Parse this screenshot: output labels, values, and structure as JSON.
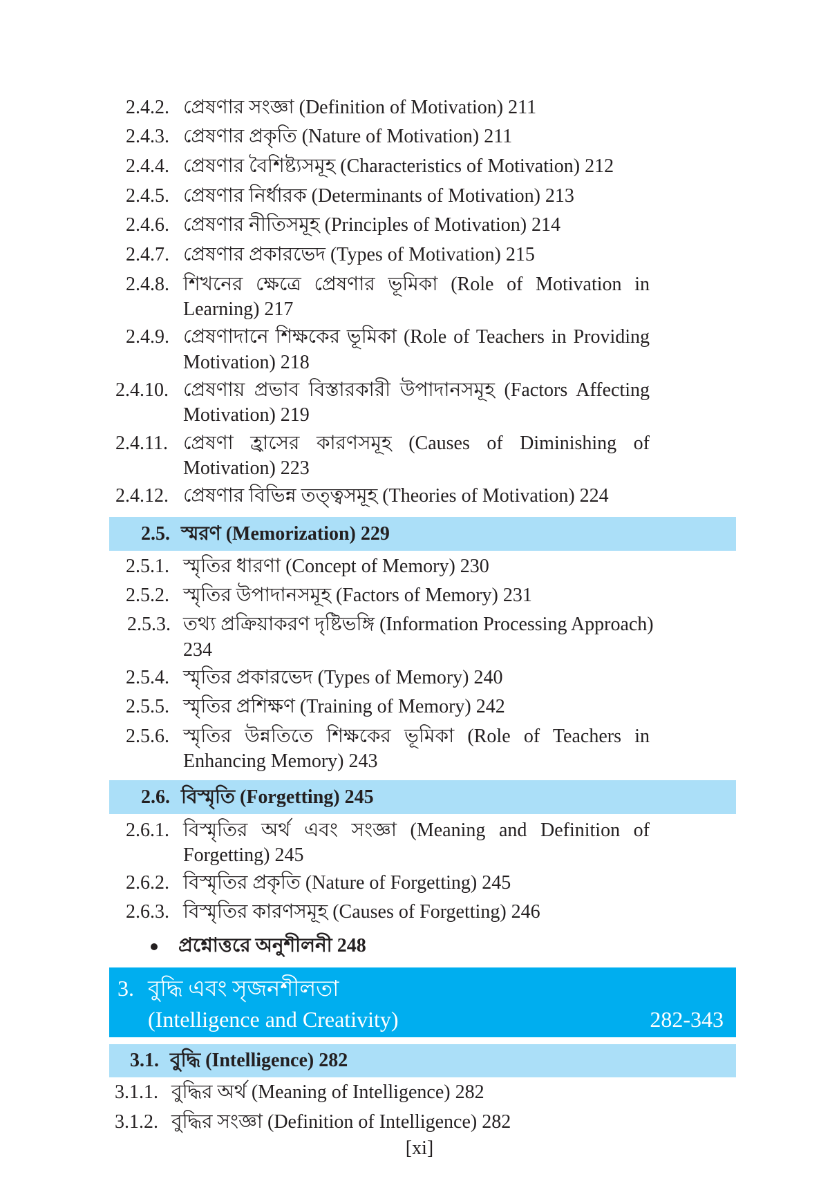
{
  "entries_a": [
    {
      "num": "2.4.2.",
      "lines": [
        "প্রেষণার সংজ্ঞা (Definition of Motivation) 211"
      ]
    },
    {
      "num": "2.4.3.",
      "lines": [
        "প্রেষণার প্রকৃতি (Nature of Motivation) 211"
      ]
    },
    {
      "num": "2.4.4.",
      "lines": [
        "প্রেষণার বৈশিষ্ট্যসমূহ (Characteristics of Motivation) 212"
      ]
    },
    {
      "num": "2.4.5.",
      "lines": [
        "প্রেষণার নির্ধারক (Determinants of Motivation) 213"
      ]
    },
    {
      "num": "2.4.6.",
      "lines": [
        "প্রেষণার নীতিসমূহ (Principles of Motivation) 214"
      ]
    },
    {
      "num": "2.4.7.",
      "lines": [
        "প্রেষণার প্রকারভেদ (Types of Motivation) 215"
      ]
    },
    {
      "num": "2.4.8.",
      "lines": [
        "শিখনের ক্ষেত্রে প্রেষণার ভূমিকা (Role of Motivation in",
        "Learning) 217"
      ]
    },
    {
      "num": "2.4.9.",
      "lines": [
        "প্রেষণাদানে শিক্ষকের ভূমিকা (Role of Teachers in Providing",
        "Motivation) 218"
      ]
    },
    {
      "num": "2.4.10.",
      "lines": [
        "প্রেষণায় প্রভাব বিস্তারকারী উপাদানসমূহ (Factors Affecting",
        "Motivation) 219"
      ]
    },
    {
      "num": "2.4.11.",
      "lines": [
        "প্রেষণা হ্রাসের কারণসমূহ (Causes of Diminishing of",
        "Motivation) 223"
      ]
    },
    {
      "num": "2.4.12.",
      "lines": [
        "প্রেষণার বিভিন্ন তত্ত্বসমূহ (Theories of Motivation) 224"
      ]
    }
  ],
  "section_25": {
    "num": "2.5.",
    "title": "স্মরণ (Memorization) 229"
  },
  "entries_b": [
    {
      "num": "2.5.1.",
      "lines": [
        "স্মৃতির ধারণা (Concept of Memory) 230"
      ]
    },
    {
      "num": "2.5.2.",
      "lines": [
        "স্মৃতির উপাদানসমূহ (Factors of Memory) 231"
      ]
    },
    {
      "num": "2.5.3.",
      "lines": [
        "তথ্য প্রক্রিয়াকরণ দৃষ্টিভঙ্গি (Information Processing Approach)",
        "234"
      ]
    },
    {
      "num": "2.5.4.",
      "lines": [
        "স্মৃতির প্রকারভেদ (Types of Memory) 240"
      ]
    },
    {
      "num": "2.5.5.",
      "lines": [
        "স্মৃতির প্রশিক্ষণ (Training of Memory) 242"
      ]
    },
    {
      "num": "2.5.6.",
      "lines": [
        "স্মৃতির উন্নতিতে শিক্ষকের ভূমিকা (Role of Teachers in",
        "Enhancing Memory) 243"
      ]
    }
  ],
  "section_26": {
    "num": "2.6.",
    "title": "বিস্মৃতি (Forgetting) 245"
  },
  "entries_c": [
    {
      "num": "2.6.1.",
      "lines": [
        "বিস্মৃতির অর্থ এবং সংজ্ঞা (Meaning and Definition of",
        "Forgetting) 245"
      ]
    },
    {
      "num": "2.6.2.",
      "lines": [
        "বিস্মৃতির প্রকৃতি (Nature of Forgetting) 245"
      ]
    },
    {
      "num": "2.6.3.",
      "lines": [
        "বিস্মৃতির কারণসমূহ (Causes of Forgetting) 246"
      ]
    }
  ],
  "exercise": "প্রশ্নোত্তরে অনুশীলনী 248",
  "chapter": {
    "num": "3.",
    "title_bn": "বুদ্ধি এবং সৃজনশীলতা",
    "title_en": "(Intelligence and Creativity)",
    "pages": "282-343",
    "color": "#00aeef"
  },
  "section_31": {
    "num": "3.1.",
    "title": "বুদ্ধি (Intelligence) 282"
  },
  "entries_d": [
    {
      "num": "3.1.1.",
      "lines": [
        "বুদ্ধির অর্থ (Meaning of Intelligence) 282"
      ]
    },
    {
      "num": "3.1.2.",
      "lines": [
        "বুদ্ধির সংজ্ঞা (Definition of Intelligence) 282"
      ]
    }
  ],
  "folio": "[xi]",
  "band_color": "#abdff8"
}
